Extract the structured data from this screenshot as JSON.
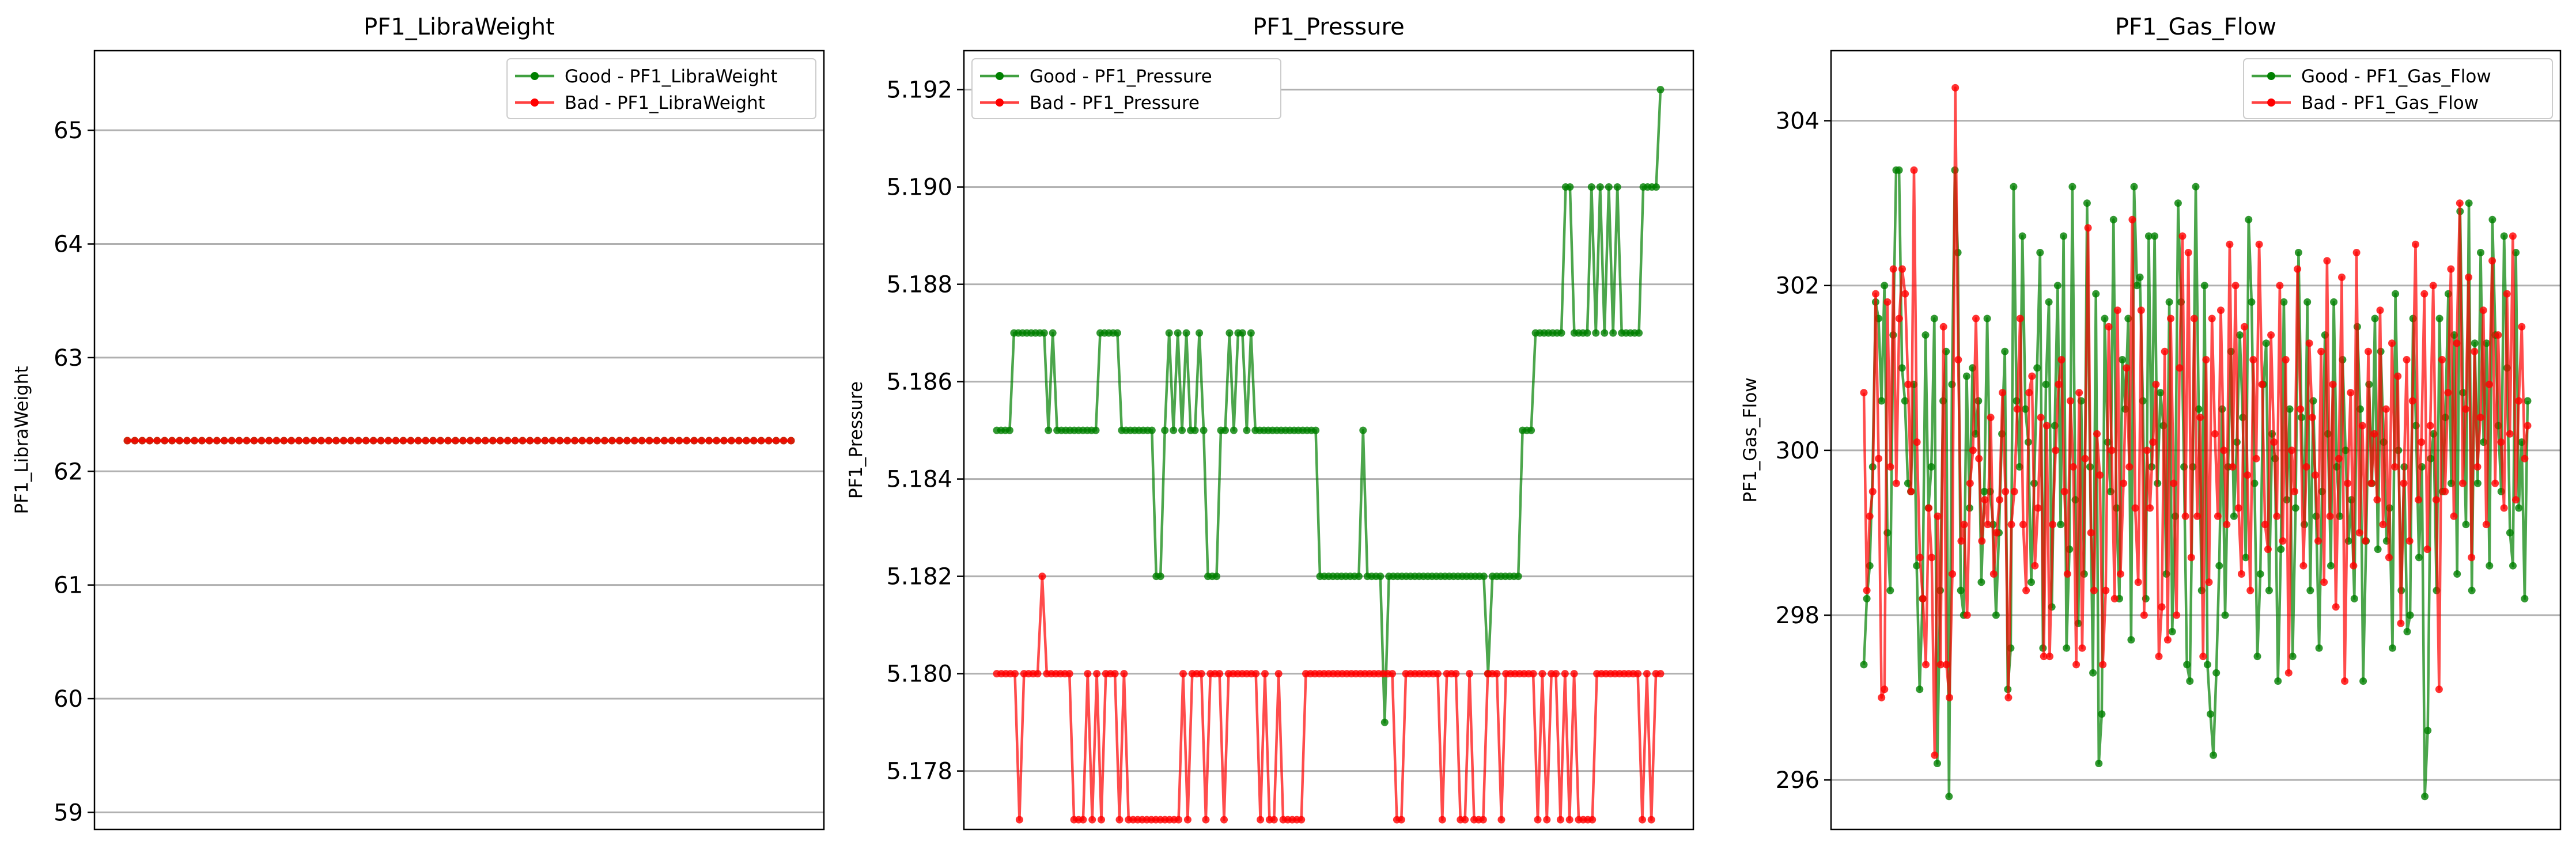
{
  "colors": {
    "good": "#008000",
    "bad": "#ff0000",
    "grid": "#b0b0b0"
  },
  "chart_data": [
    {
      "type": "line",
      "title": "PF1_LibraWeight",
      "xlabel": "",
      "ylabel": "PF1_LibraWeight",
      "ylim": [
        58.85,
        65.7
      ],
      "yticks": [
        59,
        60,
        61,
        62,
        63,
        64,
        65
      ],
      "ytick_labels": [
        "59",
        "60",
        "61",
        "62",
        "63",
        "64",
        "65"
      ],
      "grid": "y",
      "legend_loc": "upper right",
      "series": [
        {
          "name": "Good - PF1_LibraWeight",
          "color": "good",
          "values": [
            62.27,
            62.27,
            62.27,
            62.27,
            62.27,
            62.27,
            62.27,
            62.27,
            62.27,
            62.27,
            62.27,
            62.27,
            62.27,
            62.27,
            62.27,
            62.27,
            62.27,
            62.27,
            62.27,
            62.27,
            62.27,
            62.27,
            62.27,
            62.27,
            62.27,
            62.27,
            62.27,
            62.27,
            62.27,
            62.27,
            62.27,
            62.27,
            62.27,
            62.27,
            62.27,
            62.27,
            62.27,
            62.27,
            62.27,
            62.27,
            62.27,
            62.27,
            62.27,
            62.27,
            62.27,
            62.27,
            62.27,
            62.27,
            62.27,
            62.27,
            62.27,
            62.27,
            62.27,
            62.27,
            62.27,
            62.27,
            62.27,
            62.27,
            62.27,
            62.27,
            62.27,
            62.27,
            62.27,
            62.27,
            62.27,
            62.27,
            62.27,
            62.27,
            62.27,
            62.27,
            62.27,
            62.27,
            62.27,
            62.27,
            62.27,
            62.27,
            62.27,
            62.27,
            62.27,
            62.27,
            62.27,
            62.27,
            62.27,
            62.27,
            62.27,
            62.27,
            62.27,
            62.27,
            62.27,
            62.27
          ]
        },
        {
          "name": "Bad - PF1_LibraWeight",
          "color": "bad",
          "values": [
            62.27,
            62.27,
            62.27,
            62.27,
            62.27,
            62.27,
            62.27,
            62.27,
            62.27,
            62.27,
            62.27,
            62.27,
            62.27,
            62.27,
            62.27,
            62.27,
            62.27,
            62.27,
            62.27,
            62.27,
            62.27,
            62.27,
            62.27,
            62.27,
            62.27,
            62.27,
            62.27,
            62.27,
            62.27,
            62.27,
            62.27,
            62.27,
            62.27,
            62.27,
            62.27,
            62.27,
            62.27,
            62.27,
            62.27,
            62.27,
            62.27,
            62.27,
            62.27,
            62.27,
            62.27,
            62.27,
            62.27,
            62.27,
            62.27,
            62.27,
            62.27,
            62.27,
            62.27,
            62.27,
            62.27,
            62.27,
            62.27,
            62.27,
            62.27,
            62.27,
            62.27,
            62.27,
            62.27,
            62.27,
            62.27,
            62.27,
            62.27,
            62.27,
            62.27,
            62.27,
            62.27,
            62.27,
            62.27,
            62.27,
            62.27,
            62.27,
            62.27,
            62.27,
            62.27,
            62.27,
            62.27,
            62.27,
            62.27,
            62.27,
            62.27,
            62.27,
            62.27,
            62.27,
            62.27,
            62.27
          ]
        }
      ]
    },
    {
      "type": "line",
      "title": "PF1_Pressure",
      "xlabel": "",
      "ylabel": "PF1_Pressure",
      "ylim": [
        5.1768,
        5.1928
      ],
      "yticks": [
        5.178,
        5.18,
        5.182,
        5.184,
        5.186,
        5.188,
        5.19,
        5.192
      ],
      "ytick_labels": [
        "5.178",
        "5.180",
        "5.182",
        "5.184",
        "5.186",
        "5.188",
        "5.190",
        "5.192"
      ],
      "grid": "y",
      "legend_loc": "upper left",
      "series": [
        {
          "name": "Good - PF1_Pressure",
          "color": "good",
          "values": [
            5.185,
            5.185,
            5.185,
            5.185,
            5.187,
            5.187,
            5.187,
            5.187,
            5.187,
            5.187,
            5.187,
            5.187,
            5.185,
            5.187,
            5.185,
            5.185,
            5.185,
            5.185,
            5.185,
            5.185,
            5.185,
            5.185,
            5.185,
            5.185,
            5.187,
            5.187,
            5.187,
            5.187,
            5.187,
            5.185,
            5.185,
            5.185,
            5.185,
            5.185,
            5.185,
            5.185,
            5.185,
            5.182,
            5.182,
            5.185,
            5.187,
            5.185,
            5.187,
            5.185,
            5.187,
            5.185,
            5.185,
            5.187,
            5.185,
            5.182,
            5.182,
            5.182,
            5.185,
            5.185,
            5.187,
            5.185,
            5.187,
            5.187,
            5.185,
            5.187,
            5.185,
            5.185,
            5.185,
            5.185,
            5.185,
            5.185,
            5.185,
            5.185,
            5.185,
            5.185,
            5.185,
            5.185,
            5.185,
            5.185,
            5.185,
            5.182,
            5.182,
            5.182,
            5.182,
            5.182,
            5.182,
            5.182,
            5.182,
            5.182,
            5.182,
            5.185,
            5.182,
            5.182,
            5.182,
            5.182,
            5.179,
            5.182,
            5.182,
            5.182,
            5.182,
            5.182,
            5.182,
            5.182,
            5.182,
            5.182,
            5.182,
            5.182,
            5.182,
            5.182,
            5.182,
            5.182,
            5.182,
            5.182,
            5.182,
            5.182,
            5.182,
            5.182,
            5.182,
            5.182,
            5.18,
            5.182,
            5.182,
            5.182,
            5.182,
            5.182,
            5.182,
            5.182,
            5.185,
            5.185,
            5.185,
            5.187,
            5.187,
            5.187,
            5.187,
            5.187,
            5.187,
            5.187,
            5.19,
            5.19,
            5.187,
            5.187,
            5.187,
            5.187,
            5.19,
            5.187,
            5.19,
            5.187,
            5.19,
            5.187,
            5.19,
            5.187,
            5.187,
            5.187,
            5.187,
            5.187,
            5.19,
            5.19,
            5.19,
            5.19,
            5.192
          ]
        },
        {
          "name": "Bad - PF1_Pressure",
          "color": "bad",
          "values": [
            5.18,
            5.18,
            5.18,
            5.18,
            5.18,
            5.177,
            5.18,
            5.18,
            5.18,
            5.18,
            5.182,
            5.18,
            5.18,
            5.18,
            5.18,
            5.18,
            5.18,
            5.177,
            5.177,
            5.177,
            5.18,
            5.177,
            5.18,
            5.177,
            5.18,
            5.18,
            5.18,
            5.177,
            5.18,
            5.177,
            5.177,
            5.177,
            5.177,
            5.177,
            5.177,
            5.177,
            5.177,
            5.177,
            5.177,
            5.177,
            5.177,
            5.18,
            5.177,
            5.18,
            5.18,
            5.18,
            5.177,
            5.18,
            5.18,
            5.18,
            5.177,
            5.18,
            5.18,
            5.18,
            5.18,
            5.18,
            5.18,
            5.18,
            5.177,
            5.18,
            5.177,
            5.177,
            5.18,
            5.177,
            5.177,
            5.177,
            5.177,
            5.177,
            5.18,
            5.18,
            5.18,
            5.18,
            5.18,
            5.18,
            5.18,
            5.18,
            5.18,
            5.18,
            5.18,
            5.18,
            5.18,
            5.18,
            5.18,
            5.18,
            5.18,
            5.18,
            5.18,
            5.18,
            5.177,
            5.177,
            5.18,
            5.18,
            5.18,
            5.18,
            5.18,
            5.18,
            5.18,
            5.18,
            5.177,
            5.18,
            5.18,
            5.18,
            5.177,
            5.177,
            5.18,
            5.177,
            5.177,
            5.177,
            5.18,
            5.18,
            5.18,
            5.177,
            5.18,
            5.18,
            5.18,
            5.18,
            5.18,
            5.18,
            5.18,
            5.177,
            5.18,
            5.177,
            5.18,
            5.18,
            5.177,
            5.18,
            5.177,
            5.18,
            5.177,
            5.177,
            5.177,
            5.177,
            5.18,
            5.18,
            5.18,
            5.18,
            5.18,
            5.18,
            5.18,
            5.18,
            5.18,
            5.18,
            5.177,
            5.18,
            5.177,
            5.18,
            5.18
          ]
        }
      ]
    },
    {
      "type": "line",
      "title": "PF1_Gas_Flow",
      "xlabel": "",
      "ylabel": "PF1_Gas_Flow",
      "ylim": [
        295.4,
        304.85
      ],
      "yticks": [
        296,
        298,
        300,
        302,
        304
      ],
      "ytick_labels": [
        "296",
        "298",
        "300",
        "302",
        "304"
      ],
      "grid": "y",
      "legend_loc": "upper right",
      "series": [
        {
          "name": "Good - PF1_Gas_Flow",
          "color": "good",
          "values": [
            297.4,
            298.2,
            298.6,
            299.8,
            301.8,
            301.6,
            300.6,
            302,
            299,
            298.3,
            301.4,
            303.4,
            303.4,
            301,
            300.6,
            299.6,
            299.5,
            300.8,
            298.6,
            297.1,
            298.2,
            301.4,
            299.3,
            299.8,
            301.6,
            296.2,
            298.3,
            300.6,
            301.2,
            295.8,
            300.8,
            303.4,
            302.4,
            298.3,
            298,
            300.9,
            299.3,
            301,
            300.2,
            300.6,
            298.4,
            299.5,
            301.6,
            299.5,
            299.1,
            298,
            299,
            300.2,
            301.2,
            297.1,
            297.6,
            303.2,
            300.6,
            299.8,
            302.6,
            300.5,
            300.1,
            298.4,
            299.6,
            301,
            302.4,
            297.6,
            300.8,
            301.8,
            298.1,
            300.3,
            302,
            299.1,
            302.6,
            297.6,
            298.8,
            303.2,
            299.4,
            297.9,
            300.6,
            298.5,
            303,
            299.8,
            297.3,
            301.9,
            296.2,
            296.8,
            301.6,
            300.1,
            299.5,
            302.8,
            299.3,
            298.2,
            301.1,
            300.5,
            301.6,
            297.7,
            303.2,
            302,
            302.1,
            300.6,
            298.2,
            302.6,
            299.8,
            302.6,
            299.6,
            300.7,
            300.3,
            298.5,
            301.8,
            297.8,
            299.2,
            303,
            301.8,
            299.8,
            297.4,
            297.2,
            299.8,
            303.2,
            300.5,
            298.3,
            302,
            297.4,
            296.8,
            296.3,
            297.3,
            298.6,
            300.5,
            298,
            299.8,
            301.2,
            299.2,
            300.1,
            301.4,
            300.4,
            298.7,
            302.8,
            301.8,
            299.6,
            297.5,
            298.5,
            300.8,
            301.3,
            298.3,
            300.2,
            299.9,
            297.2,
            298.8,
            301.8,
            299.4,
            300.5,
            297.5,
            299.3,
            302.4,
            300.4,
            299.1,
            301.8,
            298.3,
            300.6,
            299.2,
            297.6,
            299.5,
            301.4,
            300.2,
            298.6,
            301.8,
            299.8,
            299.2,
            301.1,
            300,
            298.9,
            299.4,
            298.2,
            301.5,
            300.5,
            297.2,
            298.9,
            300.8,
            299.6,
            301.6,
            298.8,
            301.2,
            300.1,
            298.9,
            299.3,
            297.6,
            301.9,
            300,
            298.3,
            299.8,
            297.8,
            298,
            301.6,
            300.3,
            298.7,
            299.8,
            295.8,
            296.6,
            299.9,
            300.2,
            298.3,
            301.6,
            299.5,
            300.4,
            301.9,
            299.6,
            301.4,
            298.5,
            302.9,
            300.7,
            299.1,
            303,
            298.3,
            301.3,
            299.6,
            302.4,
            300.1,
            301.3,
            298.6,
            302.8,
            301.4,
            300.3,
            299.5,
            302.6,
            301,
            299,
            298.6,
            302.4,
            299.3,
            300.1,
            298.2,
            300.6
          ]
        },
        {
          "name": "Bad - PF1_Gas_Flow",
          "color": "bad",
          "values": [
            300.7,
            298.3,
            299.2,
            299.5,
            301.9,
            299.9,
            297,
            297.1,
            301.8,
            299.8,
            302.2,
            299.6,
            301.6,
            302.2,
            301.9,
            300.8,
            299.5,
            303.4,
            300.1,
            298.7,
            298.2,
            297.4,
            299.3,
            298.7,
            296.3,
            299.2,
            297.4,
            301.5,
            297.4,
            297,
            298.5,
            304.4,
            301.1,
            298.9,
            299.1,
            298,
            299.6,
            300,
            301.6,
            299.9,
            298.9,
            299.4,
            299.1,
            300.4,
            298.5,
            299,
            299.4,
            300.7,
            299.5,
            297,
            299.1,
            299.5,
            300.5,
            301.6,
            299.1,
            298.3,
            300.7,
            300.9,
            298.6,
            299.3,
            300.4,
            297.5,
            300.3,
            297.5,
            299.1,
            300,
            300.8,
            301.1,
            299.5,
            298.5,
            300.6,
            299.8,
            297.4,
            300.7,
            297.6,
            299.9,
            302.7,
            299,
            298.3,
            300.2,
            299.7,
            297.4,
            298.3,
            301.5,
            300,
            298.2,
            301.7,
            298.5,
            299.6,
            301,
            299.8,
            302.8,
            299.3,
            298.4,
            301.7,
            298,
            300,
            299.3,
            300.1,
            300.8,
            297.5,
            298.1,
            301.2,
            297.7,
            301.6,
            299.6,
            298,
            301,
            302.6,
            299.2,
            302.4,
            298.7,
            301.6,
            299.2,
            300.4,
            297.5,
            301.1,
            298.4,
            301.6,
            300.2,
            299.2,
            301.7,
            300,
            299.1,
            302.5,
            299.8,
            302,
            299.3,
            298.5,
            301.5,
            299.7,
            298.3,
            301.1,
            299.9,
            302.5,
            300.8,
            299.1,
            298.8,
            301.4,
            300.1,
            299.2,
            302,
            298.9,
            301.1,
            297.3,
            300,
            299.5,
            302.2,
            300.5,
            298.6,
            299.8,
            301.3,
            300.4,
            299.7,
            298.9,
            301.2,
            298.4,
            302.3,
            299.2,
            300.8,
            298.1,
            299.9,
            302.1,
            297.2,
            299.6,
            300.7,
            298.6,
            302.4,
            299,
            300.3,
            298.9,
            301.2,
            299.6,
            300.2,
            299.4,
            301.7,
            299.1,
            300.5,
            298.7,
            301.3,
            299.8,
            300.9,
            297.9,
            299.6,
            301.1,
            298.9,
            300.6,
            302.5,
            299.4,
            300.1,
            301.9,
            298.8,
            300.3,
            302,
            299.4,
            297.1,
            301.1,
            299.5,
            300.7,
            302.2,
            299.2,
            301.3,
            303,
            299.6,
            300.5,
            302.1,
            298.7,
            301.2,
            299.8,
            300.4,
            301.7,
            299.1,
            300.8,
            302.3,
            299.6,
            301.4,
            300.1,
            299.3,
            301.9,
            300.2,
            302.6,
            299.4,
            300.6,
            301.5,
            299.9,
            300.3
          ]
        }
      ]
    }
  ]
}
